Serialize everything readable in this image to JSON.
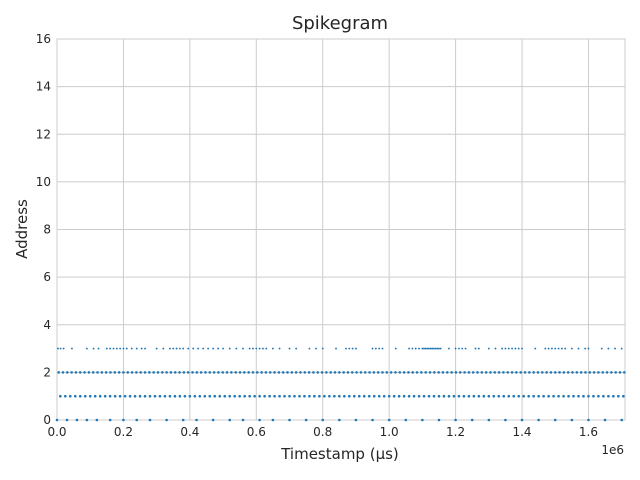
{
  "chart_data": {
    "type": "scatter",
    "title": "Spikegram",
    "xlabel": "Timestamp (μs)",
    "ylabel": "Address",
    "x_offset_label": "1e6",
    "xlim": [
      0,
      1710000
    ],
    "ylim": [
      0,
      16
    ],
    "x_ticks": [
      0,
      200000,
      400000,
      600000,
      800000,
      1000000,
      1200000,
      1400000,
      1600000
    ],
    "x_tick_labels": [
      "0.0",
      "0.2",
      "0.4",
      "0.6",
      "0.8",
      "1.0",
      "1.2",
      "1.4",
      "1.6"
    ],
    "y_ticks": [
      0,
      2,
      4,
      6,
      8,
      10,
      12,
      14,
      16
    ],
    "y_tick_labels": [
      "0",
      "2",
      "4",
      "6",
      "8",
      "10",
      "12",
      "14",
      "16"
    ],
    "grid": true,
    "marker_color": "#1f77b4",
    "series": [
      {
        "address": 0,
        "timestamps": [
          0,
          30000,
          60000,
          90000,
          120000,
          160000,
          200000,
          240000,
          280000,
          330000,
          380000,
          420000,
          470000,
          520000,
          560000,
          610000,
          650000,
          700000,
          750000,
          800000,
          850000,
          900000,
          950000,
          1000000,
          1050000,
          1100000,
          1150000,
          1200000,
          1250000,
          1300000,
          1350000,
          1400000,
          1450000,
          1500000,
          1550000,
          1600000,
          1650000,
          1700000
        ]
      },
      {
        "address": 1,
        "timestamps": [
          10000,
          25000,
          40000,
          55000,
          70000,
          85000,
          100000,
          115000,
          130000,
          145000,
          160000,
          175000,
          190000,
          205000,
          220000,
          235000,
          250000,
          265000,
          280000,
          295000,
          310000,
          325000,
          340000,
          355000,
          370000,
          385000,
          400000,
          415000,
          430000,
          445000,
          460000,
          475000,
          490000,
          505000,
          520000,
          535000,
          550000,
          565000,
          580000,
          595000,
          610000,
          625000,
          640000,
          655000,
          670000,
          685000,
          700000,
          715000,
          730000,
          745000,
          760000,
          775000,
          790000,
          805000,
          820000,
          835000,
          850000,
          865000,
          880000,
          895000,
          910000,
          925000,
          940000,
          955000,
          970000,
          985000,
          1000000,
          1015000,
          1030000,
          1045000,
          1060000,
          1075000,
          1090000,
          1105000,
          1120000,
          1135000,
          1150000,
          1165000,
          1180000,
          1195000,
          1210000,
          1225000,
          1240000,
          1255000,
          1270000,
          1285000,
          1300000,
          1315000,
          1330000,
          1345000,
          1360000,
          1375000,
          1390000,
          1405000,
          1420000,
          1435000,
          1450000,
          1465000,
          1480000,
          1495000,
          1510000,
          1525000,
          1540000,
          1555000,
          1570000,
          1585000,
          1600000,
          1615000,
          1630000,
          1645000,
          1660000,
          1675000,
          1690000,
          1705000
        ]
      },
      {
        "address": 2,
        "timestamps": [
          5000,
          18000,
          31000,
          44000,
          57000,
          70000,
          83000,
          96000,
          109000,
          122000,
          135000,
          148000,
          161000,
          174000,
          187000,
          200000,
          213000,
          226000,
          239000,
          252000,
          265000,
          278000,
          291000,
          304000,
          317000,
          330000,
          343000,
          356000,
          369000,
          382000,
          395000,
          408000,
          421000,
          434000,
          447000,
          460000,
          473000,
          486000,
          499000,
          512000,
          525000,
          538000,
          551000,
          564000,
          577000,
          590000,
          603000,
          616000,
          629000,
          642000,
          655000,
          668000,
          681000,
          694000,
          707000,
          720000,
          733000,
          746000,
          759000,
          772000,
          785000,
          798000,
          811000,
          824000,
          837000,
          850000,
          863000,
          876000,
          889000,
          902000,
          915000,
          928000,
          941000,
          954000,
          967000,
          980000,
          993000,
          1006000,
          1019000,
          1032000,
          1045000,
          1058000,
          1071000,
          1084000,
          1097000,
          1110000,
          1123000,
          1136000,
          1149000,
          1162000,
          1175000,
          1188000,
          1201000,
          1214000,
          1227000,
          1240000,
          1253000,
          1266000,
          1279000,
          1292000,
          1305000,
          1318000,
          1331000,
          1344000,
          1357000,
          1370000,
          1383000,
          1396000,
          1409000,
          1422000,
          1435000,
          1448000,
          1461000,
          1474000,
          1487000,
          1500000,
          1513000,
          1526000,
          1539000,
          1552000,
          1565000,
          1578000,
          1591000,
          1604000,
          1617000,
          1630000,
          1643000,
          1656000,
          1669000,
          1682000,
          1695000,
          1708000
        ]
      },
      {
        "address": 3,
        "timestamps": [
          3000,
          11000,
          20000,
          45000,
          90000,
          110000,
          125000,
          150000,
          160000,
          170000,
          180000,
          190000,
          200000,
          210000,
          225000,
          240000,
          255000,
          265000,
          300000,
          320000,
          340000,
          350000,
          360000,
          370000,
          380000,
          395000,
          410000,
          425000,
          440000,
          455000,
          470000,
          485000,
          500000,
          520000,
          540000,
          560000,
          580000,
          590000,
          600000,
          610000,
          620000,
          630000,
          650000,
          670000,
          700000,
          720000,
          760000,
          780000,
          800000,
          840000,
          870000,
          880000,
          890000,
          900000,
          950000,
          960000,
          970000,
          980000,
          1020000,
          1060000,
          1070000,
          1080000,
          1090000,
          1100000,
          1105000,
          1110000,
          1115000,
          1120000,
          1125000,
          1130000,
          1135000,
          1140000,
          1145000,
          1150000,
          1155000,
          1180000,
          1200000,
          1210000,
          1220000,
          1230000,
          1260000,
          1270000,
          1300000,
          1320000,
          1340000,
          1350000,
          1360000,
          1370000,
          1380000,
          1390000,
          1400000,
          1440000,
          1470000,
          1480000,
          1490000,
          1500000,
          1510000,
          1520000,
          1530000,
          1550000,
          1570000,
          1590000,
          1600000,
          1640000,
          1660000,
          1680000,
          1700000
        ]
      }
    ]
  }
}
